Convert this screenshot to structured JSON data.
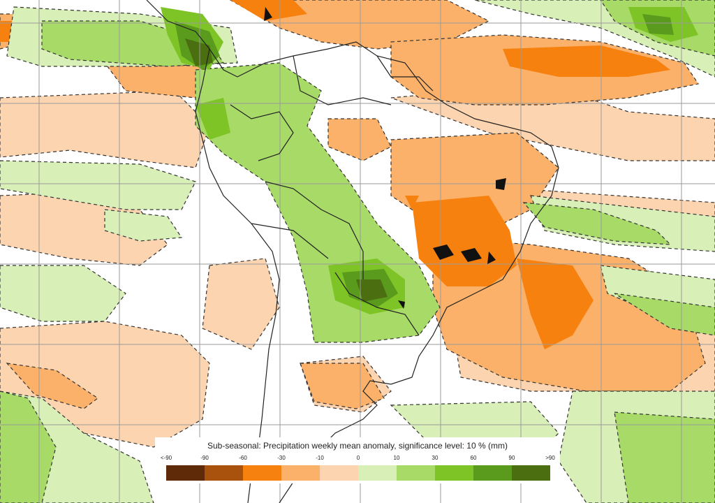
{
  "legend": {
    "title": "Sub-seasonal: Precipitation weekly mean anomaly, significance level: 10 % (mm)",
    "ticks": [
      "<-90",
      "-90",
      "-60",
      "-30",
      "-10",
      "0",
      "10",
      "30",
      "60",
      "90",
      ">90"
    ],
    "colors": [
      "#5e2a08",
      "#a9520e",
      "#f7810f",
      "#fbb16a",
      "#fdd4b0",
      "#d8efb7",
      "#a8da68",
      "#7ec426",
      "#5a9a1c",
      "#4b6e10"
    ]
  },
  "map": {
    "description_colors": {
      "dry_light": "#fdd4b0",
      "dry_mid": "#fbb16a",
      "dry_strong": "#f7810f",
      "wet_light": "#d8efb7",
      "wet_mid": "#a8da68",
      "wet_strong": "#7ec426",
      "wet_darker": "#5a9a1c",
      "wet_darkest": "#4b6e10",
      "gridline": "#9a9a9a",
      "coastline": "#222222"
    }
  }
}
